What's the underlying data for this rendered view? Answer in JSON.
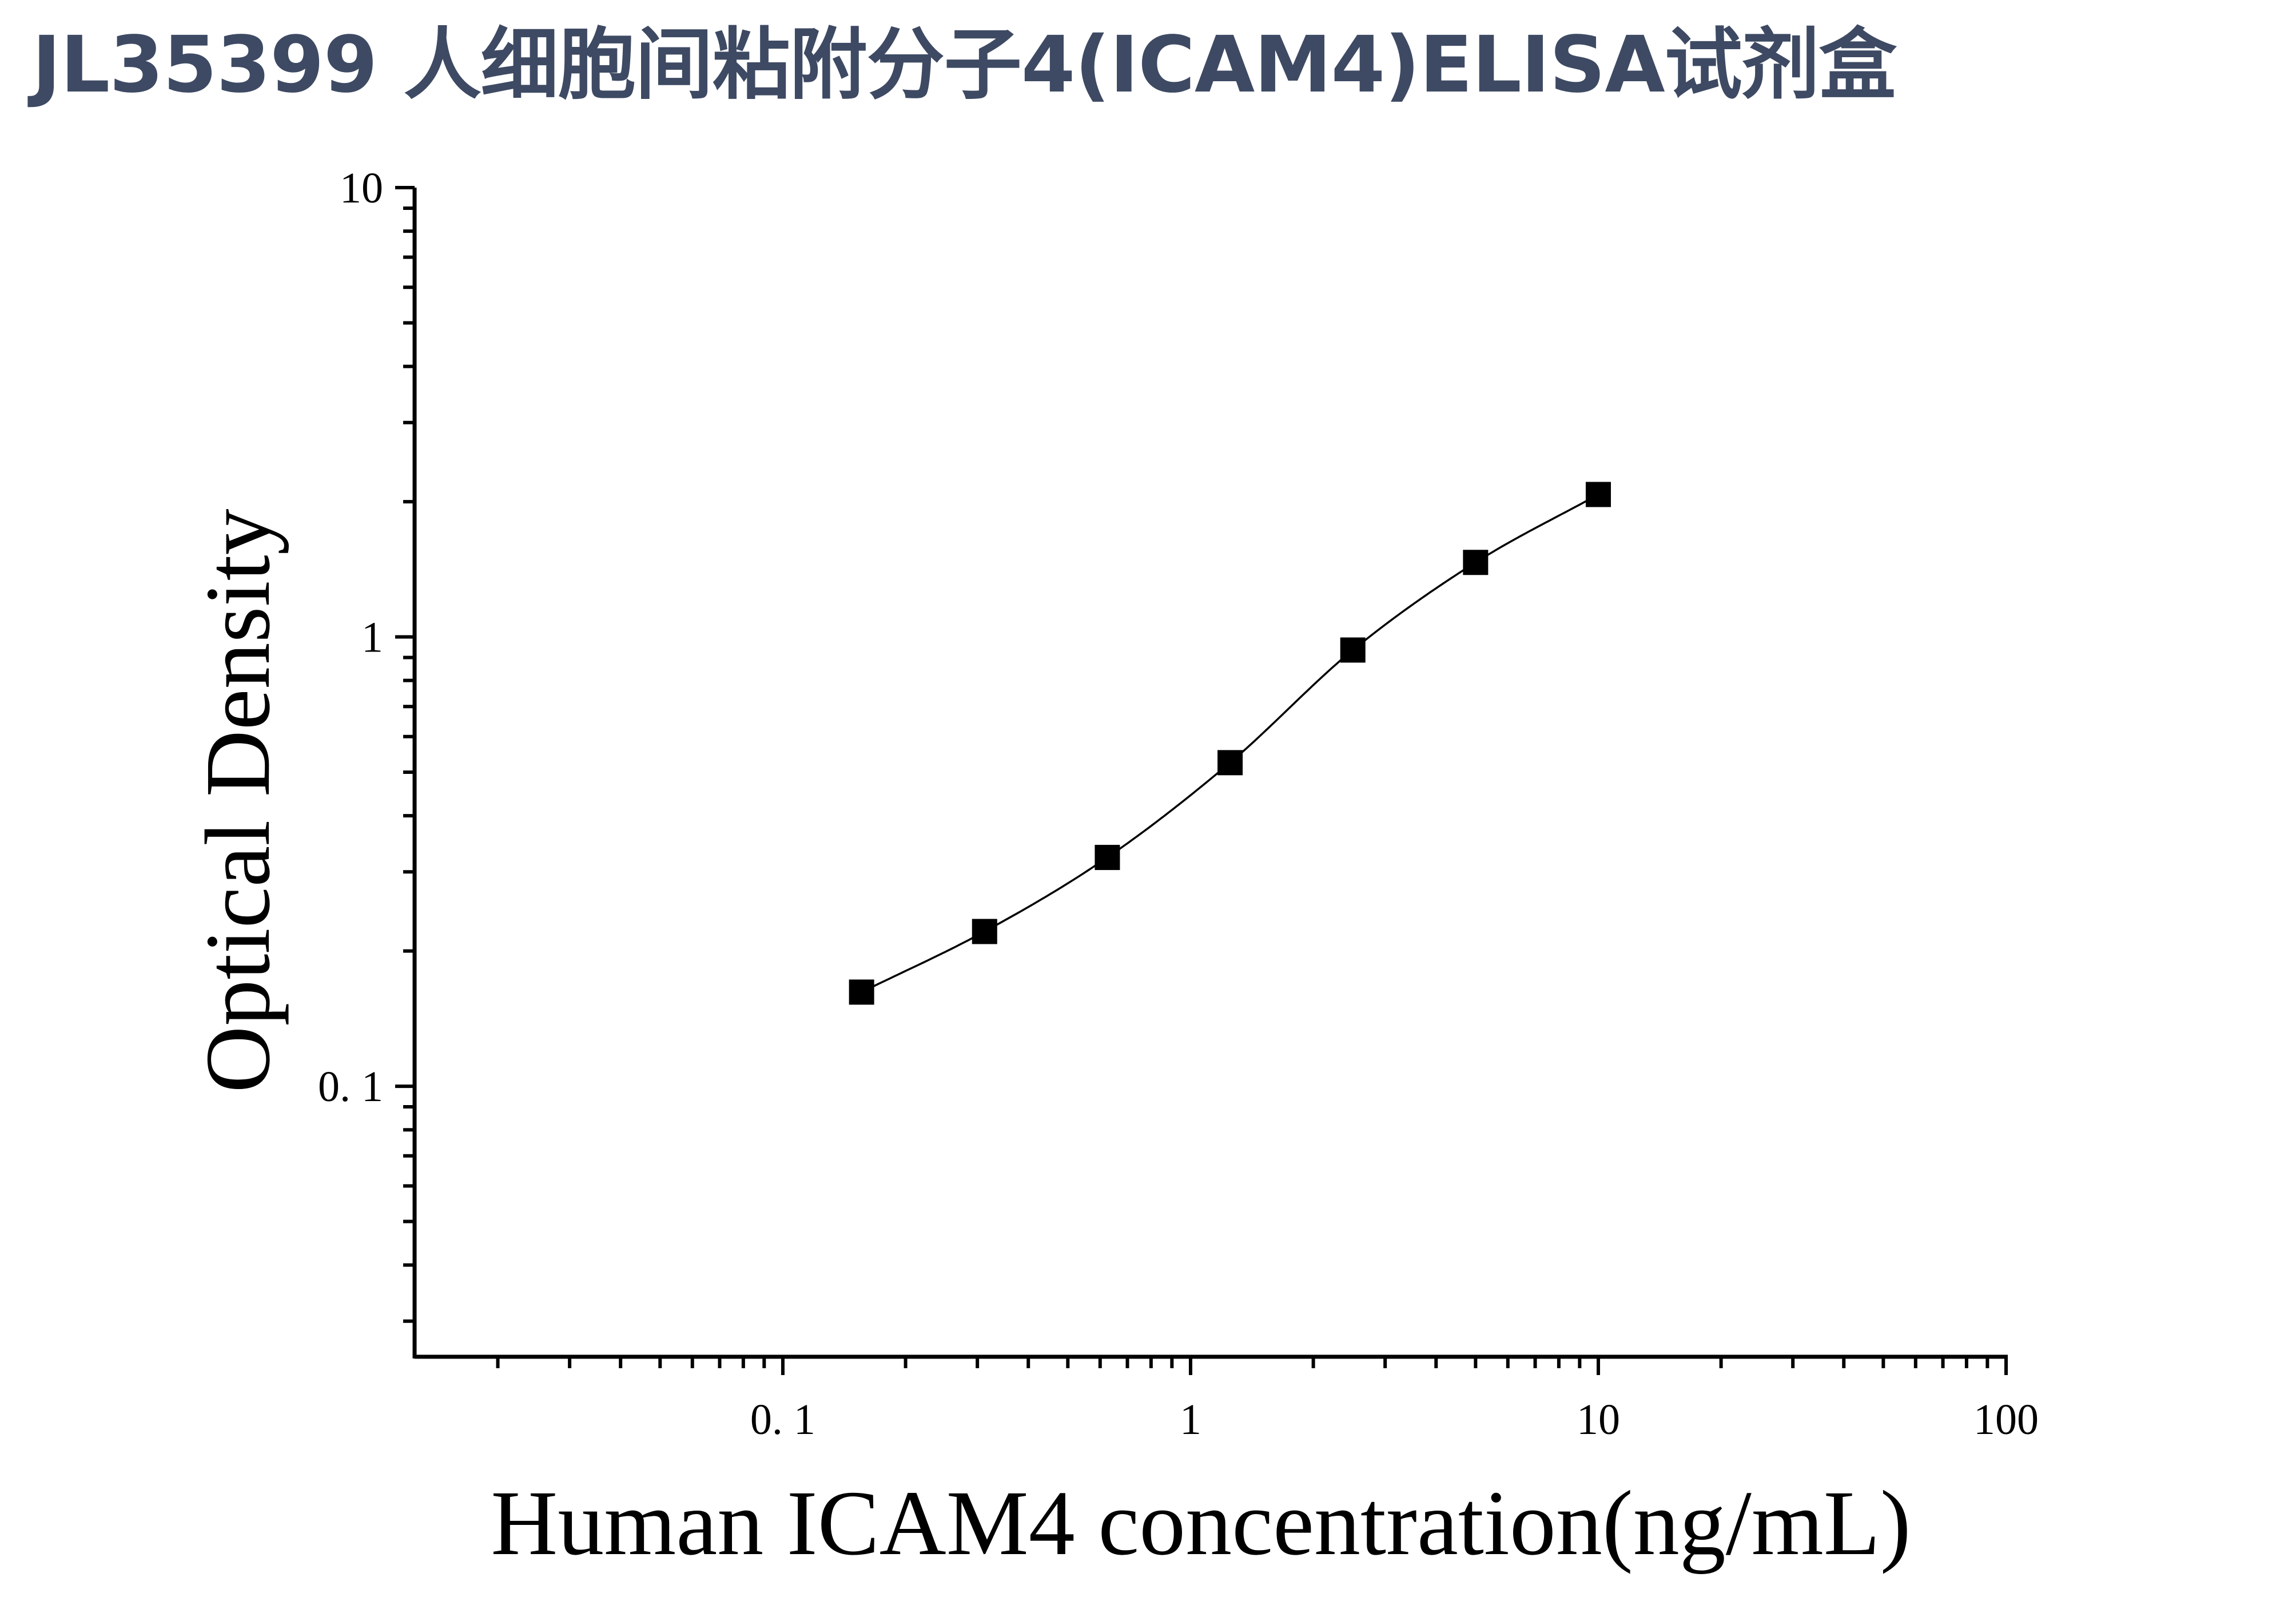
{
  "header": {
    "title": "JL35399 人细胞间粘附分子4(ICAM4)ELISA试剂盒",
    "color": "#3e4a63"
  },
  "chart_data": {
    "type": "scatter",
    "xlabel": "Human ICAM4 concentration(ng/mL)",
    "ylabel": "Optical Density",
    "xscale": "log",
    "yscale": "log",
    "xlim": [
      0.0125,
      100
    ],
    "ylim": [
      0.025,
      10
    ],
    "xticks": [
      {
        "value": 0.1,
        "label": "0. 1"
      },
      {
        "value": 1,
        "label": "1"
      },
      {
        "value": 10,
        "label": "10"
      },
      {
        "value": 100,
        "label": "100"
      }
    ],
    "yticks": [
      {
        "value": 0.1,
        "label": "0. 1"
      },
      {
        "value": 1,
        "label": "1"
      },
      {
        "value": 10,
        "label": "10"
      }
    ],
    "grid": false,
    "series": [
      {
        "marker": "square",
        "fit": "smooth curve",
        "color": "#000000",
        "x": [
          0.156,
          0.3125,
          0.625,
          1.25,
          2.5,
          5,
          10
        ],
        "y": [
          0.162,
          0.221,
          0.323,
          0.525,
          0.935,
          1.465,
          2.075
        ]
      }
    ]
  }
}
